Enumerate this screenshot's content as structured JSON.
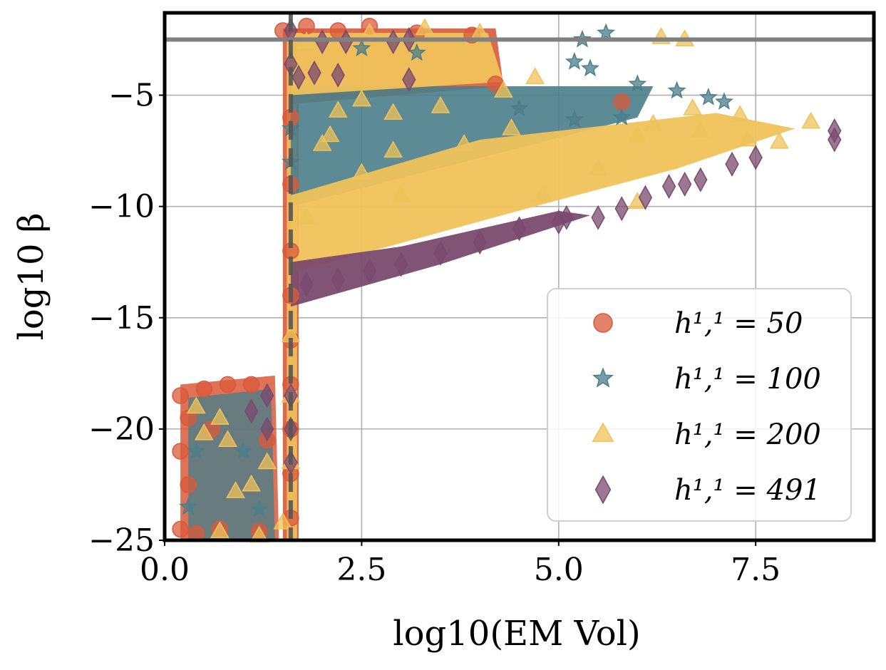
{
  "chart_data": {
    "type": "scatter",
    "title": "",
    "xlabel": "log10(EM Vol)",
    "ylabel": "log10 β",
    "xlim": [
      0.0,
      9.0
    ],
    "ylim": [
      -25,
      -1.3
    ],
    "grid": true,
    "x_ticks": [
      0.0,
      2.5,
      5.0,
      7.5
    ],
    "x_tick_labels": [
      "0.0",
      "2.5",
      "5.0",
      "7.5"
    ],
    "y_ticks": [
      -5,
      -10,
      -15,
      -20,
      -25
    ],
    "y_tick_labels": [
      "−5",
      "−10",
      "−15",
      "−20",
      "−25"
    ],
    "reference_lines": {
      "horizontal": {
        "y": -2.5,
        "style": "solid",
        "color": "#808080"
      },
      "vertical": {
        "x": 1.6,
        "style": "dashed",
        "color": "#555555"
      }
    },
    "legend_position": "lower-right",
    "series": [
      {
        "name": "h^{1,1} = 50",
        "label": "h¹,¹ = 50",
        "marker": "circle",
        "color": "#d9593a",
        "points": [
          [
            0.2,
            -18.5
          ],
          [
            0.3,
            -19.5
          ],
          [
            0.2,
            -21
          ],
          [
            0.3,
            -22.5
          ],
          [
            0.2,
            -24.5
          ],
          [
            0.5,
            -18.2
          ],
          [
            0.8,
            -18
          ],
          [
            1.1,
            -18
          ],
          [
            0.4,
            -24.7
          ],
          [
            0.7,
            -24.5
          ],
          [
            1.2,
            -24.6
          ],
          [
            1.5,
            -2.1
          ],
          [
            1.8,
            -1.9
          ],
          [
            2.2,
            -2.1
          ],
          [
            2.6,
            -1.9
          ],
          [
            3.2,
            -2.2
          ],
          [
            3.9,
            -2.3
          ],
          [
            1.6,
            -6
          ],
          [
            1.6,
            -9
          ],
          [
            1.6,
            -12
          ],
          [
            1.6,
            -14
          ],
          [
            1.6,
            -16
          ],
          [
            1.6,
            -18
          ],
          [
            1.6,
            -20
          ],
          [
            1.6,
            -22
          ],
          [
            1.6,
            -24
          ],
          [
            4.2,
            -4.5
          ],
          [
            5.8,
            -5.3
          ],
          [
            1.3,
            -20.5
          ],
          [
            0.6,
            -20
          ]
        ]
      },
      {
        "name": "h^{1,1} = 100",
        "label": "h¹,¹ = 100",
        "marker": "star",
        "color": "#4a7e8a",
        "points": [
          [
            5.3,
            -2.5
          ],
          [
            5.6,
            -2.2
          ],
          [
            5.4,
            -3.8
          ],
          [
            5.2,
            -3.5
          ],
          [
            6.0,
            -4.5
          ],
          [
            6.5,
            -4.8
          ],
          [
            6.9,
            -5.1
          ],
          [
            7.1,
            -5.3
          ],
          [
            2.5,
            -2.9
          ],
          [
            3.2,
            -3.1
          ],
          [
            4.5,
            -5.6
          ],
          [
            5.2,
            -6.1
          ],
          [
            5.8,
            -6.0
          ],
          [
            0.3,
            -23.5
          ],
          [
            0.4,
            -21
          ],
          [
            0.7,
            -19.5
          ],
          [
            1.0,
            -21
          ],
          [
            1.2,
            -23.6
          ],
          [
            1.6,
            -6.5
          ],
          [
            1.6,
            -8
          ]
        ]
      },
      {
        "name": "h^{1,1} = 200",
        "label": "h¹,¹ = 200",
        "marker": "triangle",
        "color": "#efc25a",
        "points": [
          [
            0.4,
            -19.0
          ],
          [
            0.7,
            -19.5
          ],
          [
            0.5,
            -20.2
          ],
          [
            0.8,
            -20.5
          ],
          [
            0.9,
            -22.8
          ],
          [
            1.1,
            -22.5
          ],
          [
            1.3,
            -21.5
          ],
          [
            1.5,
            -24.2
          ],
          [
            0.7,
            -24.6
          ],
          [
            1.2,
            -24.8
          ],
          [
            1.6,
            -15.8
          ],
          [
            1.6,
            -18.5
          ],
          [
            1.6,
            -21.5
          ],
          [
            2.2,
            -5.7
          ],
          [
            2.5,
            -5.2
          ],
          [
            2.9,
            -5.8
          ],
          [
            3.5,
            -5.5
          ],
          [
            4.3,
            -4.8
          ],
          [
            4.7,
            -4.2
          ],
          [
            2.0,
            -7.2
          ],
          [
            2.5,
            -8.5
          ],
          [
            3.0,
            -9.5
          ],
          [
            2.1,
            -6.8
          ],
          [
            1.8,
            -10.5
          ],
          [
            4.8,
            -9.5
          ],
          [
            5.5,
            -8.3
          ],
          [
            6.0,
            -6.8
          ],
          [
            6.8,
            -6.6
          ],
          [
            7.4,
            -7.0
          ],
          [
            7.8,
            -7.1
          ],
          [
            8.2,
            -6.2
          ],
          [
            7.3,
            -5.9
          ],
          [
            6.7,
            -5.6
          ],
          [
            6.2,
            -6.3
          ],
          [
            6.0,
            -9.8
          ],
          [
            6.3,
            -2.4
          ],
          [
            6.6,
            -2.5
          ],
          [
            4.0,
            -2.2
          ],
          [
            2.6,
            -2.2
          ],
          [
            1.8,
            -2.6
          ],
          [
            3.3,
            -2.0
          ],
          [
            2.9,
            -7.5
          ],
          [
            3.8,
            -7.2
          ],
          [
            4.4,
            -6.5
          ]
        ]
      },
      {
        "name": "h^{1,1} = 491",
        "label": "h¹,¹ = 491",
        "marker": "diamond",
        "color": "#7a4a6e",
        "points": [
          [
            1.6,
            -2.1
          ],
          [
            2.0,
            -2.6
          ],
          [
            2.3,
            -2.6
          ],
          [
            2.9,
            -2.6
          ],
          [
            3.1,
            -2.5
          ],
          [
            1.6,
            -3.6
          ],
          [
            1.9,
            -4.0
          ],
          [
            1.7,
            -4.2
          ],
          [
            2.2,
            -4.1
          ],
          [
            3.1,
            -4.3
          ],
          [
            1.8,
            -13.5
          ],
          [
            2.2,
            -13.3
          ],
          [
            2.6,
            -12.9
          ],
          [
            3.0,
            -12.6
          ],
          [
            3.5,
            -12.1
          ],
          [
            4.0,
            -11.6
          ],
          [
            4.5,
            -11.0
          ],
          [
            5.0,
            -10.7
          ],
          [
            5.5,
            -10.5
          ],
          [
            5.8,
            -10.1
          ],
          [
            6.1,
            -9.6
          ],
          [
            6.4,
            -9.1
          ],
          [
            6.8,
            -8.8
          ],
          [
            7.2,
            -8.1
          ],
          [
            7.5,
            -7.8
          ],
          [
            8.5,
            -6.6
          ],
          [
            8.5,
            -7.0
          ],
          [
            1.3,
            -18.5
          ],
          [
            1.6,
            -18.5
          ],
          [
            1.3,
            -20.0
          ],
          [
            1.1,
            -19.2
          ],
          [
            1.6,
            -21.5
          ],
          [
            1.6,
            -20.0
          ],
          [
            5.1,
            -10.5
          ],
          [
            6.6,
            -9.0
          ]
        ]
      }
    ]
  }
}
